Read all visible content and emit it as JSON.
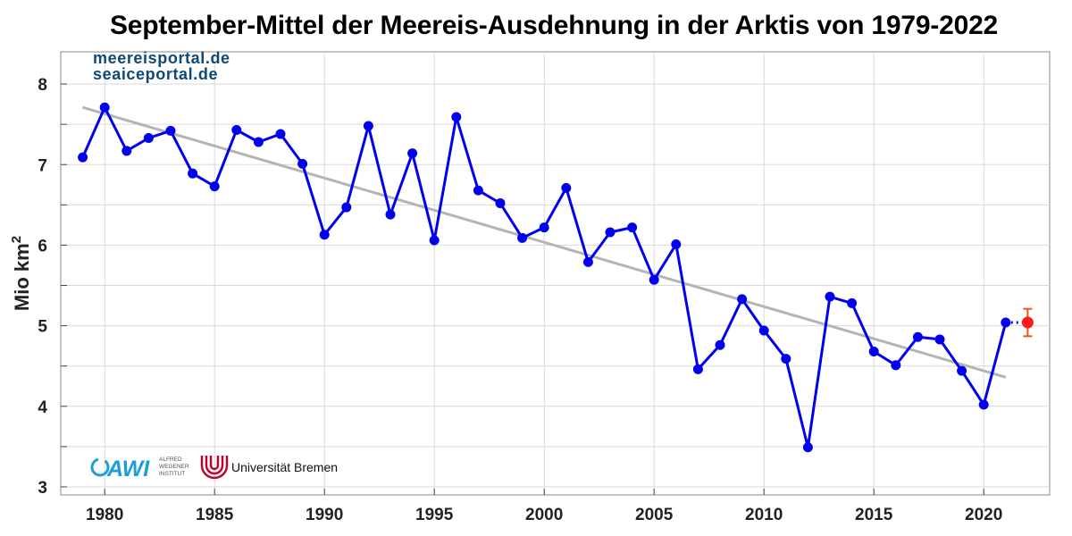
{
  "chart_data": {
    "type": "line",
    "title": "September-Mittel der Meereis-Ausdehnung in der Arktis von 1979-2022",
    "xlabel": "",
    "ylabel_main": "Mio km",
    "ylabel_sup": "2",
    "xlim": [
      1978,
      2023
    ],
    "ylim": [
      2.9,
      8.4
    ],
    "xticks": [
      1980,
      1985,
      1990,
      1995,
      2000,
      2005,
      2010,
      2015,
      2020
    ],
    "yticks": [
      3,
      4,
      5,
      6,
      7,
      8
    ],
    "grid": true,
    "series": [
      {
        "color": "#0000ee",
        "x": [
          1979,
          1980,
          1981,
          1982,
          1983,
          1984,
          1985,
          1986,
          1987,
          1988,
          1989,
          1990,
          1991,
          1992,
          1993,
          1994,
          1995,
          1996,
          1997,
          1998,
          1999,
          2000,
          2001,
          2002,
          2003,
          2004,
          2005,
          2006,
          2007,
          2008,
          2009,
          2010,
          2011,
          2012,
          2013,
          2014,
          2015,
          2016,
          2017,
          2018,
          2019,
          2020,
          2021
        ],
        "values": [
          7.09,
          7.71,
          7.17,
          7.33,
          7.42,
          6.89,
          6.73,
          7.43,
          7.28,
          7.38,
          7.01,
          6.13,
          6.47,
          7.48,
          6.38,
          7.14,
          6.06,
          7.59,
          6.68,
          6.52,
          6.09,
          6.22,
          6.71,
          5.79,
          6.16,
          6.22,
          5.57,
          6.01,
          4.46,
          4.76,
          5.33,
          4.94,
          4.59,
          3.49,
          5.36,
          5.28,
          4.68,
          4.51,
          4.86,
          4.83,
          4.44,
          4.02,
          5.04
        ]
      },
      {
        "color": "#ff1a1a",
        "x": [
          2022
        ],
        "values": [
          5.04
        ],
        "error": [
          0.17
        ],
        "error_color": "#e35a1c"
      }
    ],
    "trend": {
      "color": "#b4b4b4",
      "x": [
        1979,
        2021
      ],
      "values": [
        7.71,
        4.36
      ]
    }
  },
  "branding": {
    "portal_de": "meereisportal.de",
    "portal_en": "seaiceportal.de",
    "awi_name": "AWI",
    "awi_line1": "ALFRED",
    "awi_line2": "WEGENER",
    "awi_line3": "INSTITUT",
    "uni_name": "Universität Bremen",
    "colors": {
      "portal": "#0b4a7a",
      "awi": "#1aa0d8",
      "uni": "#c0002a"
    }
  }
}
